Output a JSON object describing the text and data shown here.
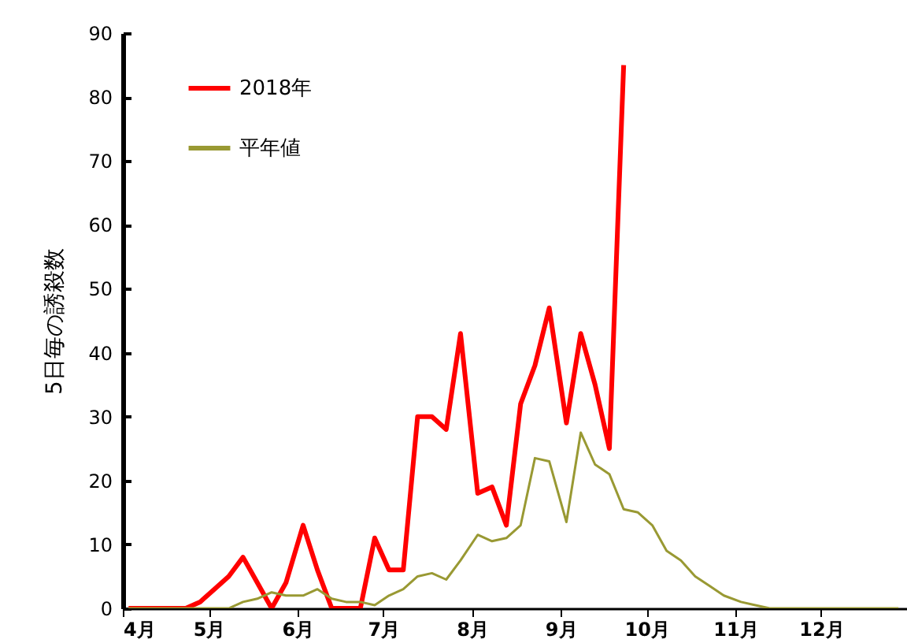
{
  "chart_data": {
    "type": "line",
    "ylabel": "5日毎の誘殺数",
    "x": [
      "--04-03",
      "--04-08",
      "--04-13",
      "--04-18",
      "--04-23",
      "--04-28",
      "--05-03",
      "--05-08",
      "--05-13",
      "--05-18",
      "--05-23",
      "--05-28",
      "--06-03",
      "--06-08",
      "--06-13",
      "--06-18",
      "--06-23",
      "--06-28",
      "--07-03",
      "--07-08",
      "--07-13",
      "--07-18",
      "--07-23",
      "--07-28",
      "--08-03",
      "--08-08",
      "--08-13",
      "--08-18",
      "--08-23",
      "--08-28",
      "--09-03",
      "--09-08",
      "--09-13",
      "--09-18",
      "--09-23",
      "--09-28",
      "--10-03",
      "--10-08",
      "--10-13",
      "--10-18",
      "--10-23",
      "--10-28",
      "--11-03",
      "--11-08",
      "--11-13",
      "--11-18",
      "--11-23",
      "--11-28",
      "--12-03",
      "--12-08",
      "--12-13",
      "--12-18",
      "--12-23",
      "--12-28"
    ],
    "series": [
      {
        "name": "2018年",
        "color": "#ff0000",
        "values": [
          0,
          0,
          0,
          0,
          0,
          1,
          3,
          5,
          8,
          4,
          0,
          4,
          13,
          6,
          0,
          0,
          0,
          11,
          6,
          6,
          30,
          30,
          28,
          43,
          18,
          19,
          13,
          32,
          38,
          47,
          29,
          43,
          35,
          25,
          85,
          null,
          null,
          null,
          null,
          null,
          null,
          null,
          null,
          null,
          null,
          null,
          null,
          null,
          null,
          null,
          null,
          null,
          null,
          null
        ]
      },
      {
        "name": "平年値",
        "color": "#999933",
        "values": [
          0,
          0,
          0,
          0,
          0,
          0,
          0,
          0,
          1,
          1.5,
          2.5,
          2,
          2,
          3,
          1.5,
          1,
          1,
          0.5,
          2,
          3,
          5,
          5.5,
          4.5,
          7.5,
          11.5,
          10.5,
          11,
          13,
          23.5,
          23,
          13.5,
          27.5,
          22.5,
          21,
          15.5,
          15,
          13,
          9,
          7.5,
          5,
          3.5,
          2,
          1,
          0.5,
          0,
          0,
          0,
          0,
          0,
          0,
          0,
          0,
          0,
          0
        ]
      }
    ],
    "xlim": [
      "--04-01",
      "--12-31"
    ],
    "xticks": [
      {
        "value": "--04-01",
        "label": "4月"
      },
      {
        "value": "--05-01",
        "label": "5月"
      },
      {
        "value": "--06-01",
        "label": "6月"
      },
      {
        "value": "--07-01",
        "label": "7月"
      },
      {
        "value": "--08-01",
        "label": "8月"
      },
      {
        "value": "--09-01",
        "label": "9月"
      },
      {
        "value": "--10-01",
        "label": "10月"
      },
      {
        "value": "--11-01",
        "label": "11月"
      },
      {
        "value": "--12-01",
        "label": "12月"
      }
    ],
    "ylim": [
      0,
      90
    ],
    "yticks": [
      0,
      10,
      20,
      30,
      40,
      50,
      60,
      70,
      80,
      90
    ],
    "grid": false,
    "legend": "top left",
    "marker": "none",
    "line_style": "solid"
  }
}
